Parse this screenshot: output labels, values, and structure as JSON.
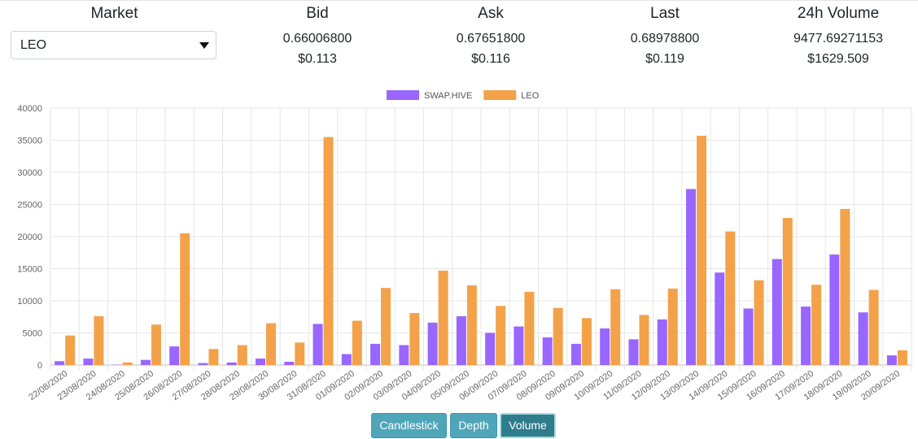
{
  "header": {
    "market": {
      "title": "Market",
      "selected": "LEO"
    },
    "bid": {
      "title": "Bid",
      "value": "0.66006800",
      "usd": "$0.113"
    },
    "ask": {
      "title": "Ask",
      "value": "0.67651800",
      "usd": "$0.116"
    },
    "last": {
      "title": "Last",
      "value": "0.68978800",
      "usd": "$0.119"
    },
    "volume": {
      "title": "24h Volume",
      "value": "9477.69271153",
      "usd": "$1629.509"
    }
  },
  "buttons": {
    "candlestick": "Candlestick",
    "depth": "Depth",
    "volume": "Volume",
    "active": "volume"
  },
  "chart_data": {
    "type": "bar",
    "categories": [
      "22/08/2020",
      "23/08/2020",
      "24/08/2020",
      "25/08/2020",
      "26/08/2020",
      "27/08/2020",
      "28/08/2020",
      "29/08/2020",
      "30/08/2020",
      "31/08/2020",
      "01/09/2020",
      "02/09/2020",
      "03/09/2020",
      "04/09/2020",
      "05/09/2020",
      "06/09/2020",
      "07/09/2020",
      "08/09/2020",
      "09/09/2020",
      "10/09/2020",
      "11/09/2020",
      "12/09/2020",
      "13/09/2020",
      "14/09/2020",
      "15/09/2020",
      "16/09/2020",
      "17/09/2020",
      "18/09/2020",
      "19/09/2020",
      "20/09/2020"
    ],
    "series": [
      {
        "name": "SWAP.HIVE",
        "color": "#9966ff",
        "values": [
          600,
          1000,
          50,
          800,
          2900,
          300,
          400,
          1000,
          500,
          6400,
          1700,
          3300,
          3100,
          6600,
          7600,
          5000,
          6000,
          4300,
          3300,
          5700,
          4000,
          7100,
          27400,
          14400,
          8800,
          16500,
          9100,
          17200,
          8200,
          1500
        ]
      },
      {
        "name": "LEO",
        "color": "#f3a24a",
        "values": [
          4600,
          7600,
          400,
          6300,
          20500,
          2500,
          3100,
          6500,
          3500,
          35500,
          6900,
          12000,
          8100,
          14700,
          12400,
          9200,
          11400,
          8900,
          7300,
          11800,
          7800,
          11900,
          35700,
          20800,
          13200,
          22900,
          12500,
          24300,
          11700,
          2300
        ]
      }
    ],
    "ylim": [
      0,
      40000
    ],
    "yticks": [
      "0",
      "5000",
      "10000",
      "15000",
      "20000",
      "25000",
      "30000",
      "35000",
      "40000"
    ],
    "grid": true,
    "legend": "top-center"
  }
}
